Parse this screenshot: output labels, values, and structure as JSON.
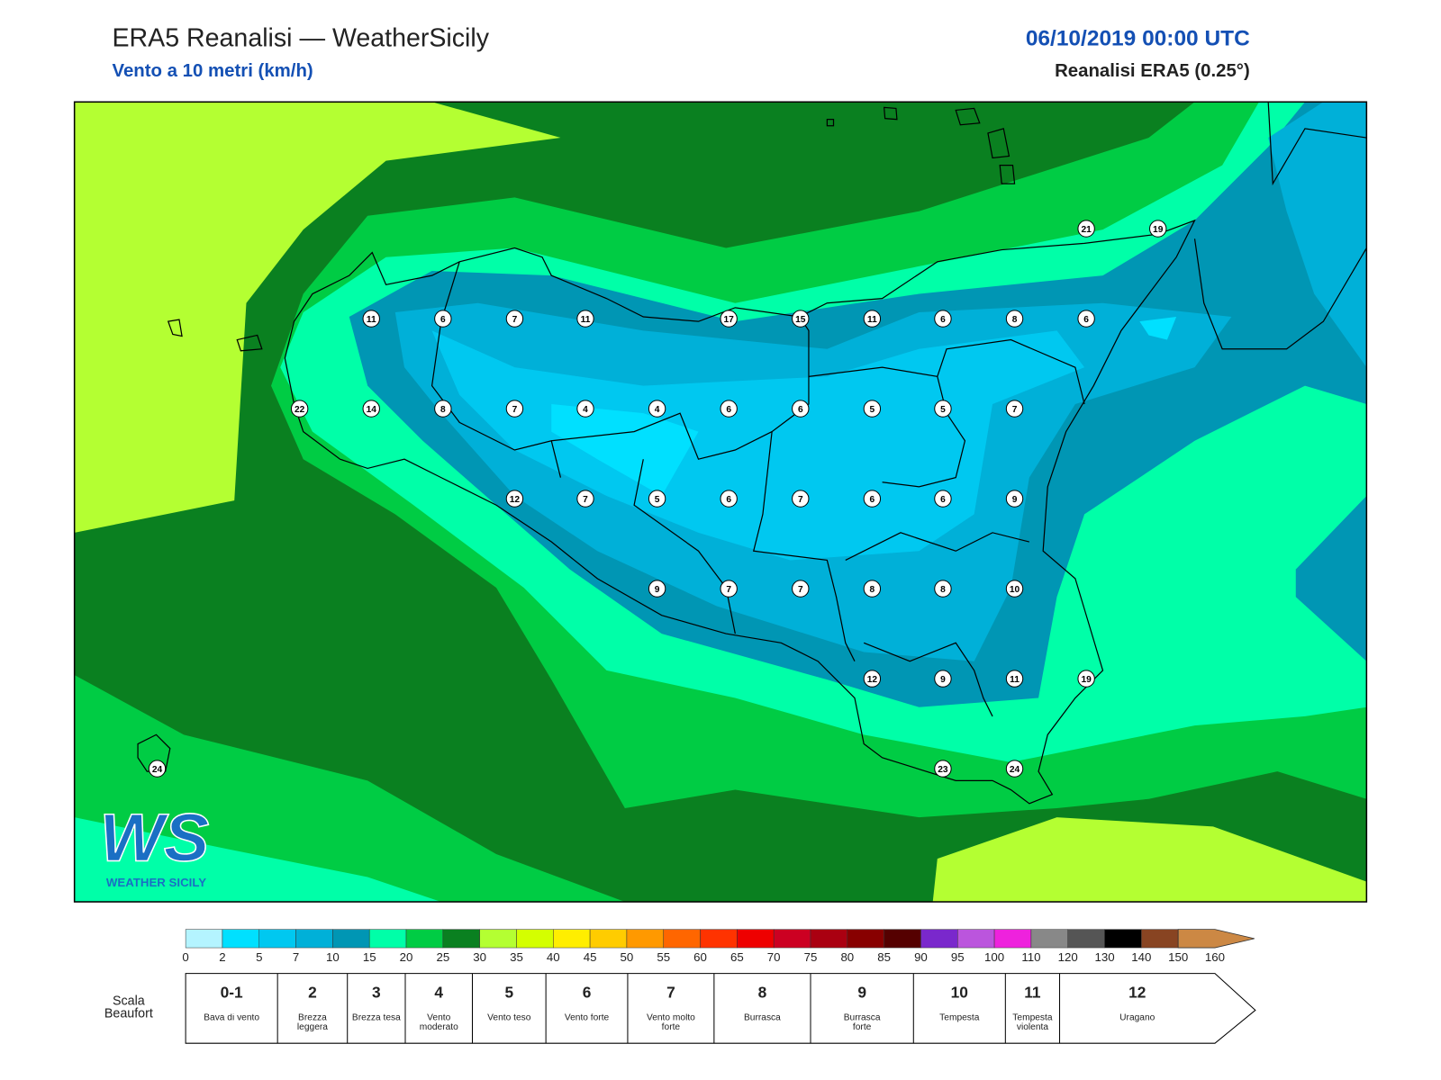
{
  "header": {
    "title": "ERA5 Reanalisi — WeatherSicily",
    "subtitle": "Vento a 10 metri (km/h)",
    "datetime": "06/10/2019 00:00 UTC",
    "source": "Reanalisi ERA5 (0.25°)"
  },
  "map": {
    "stations": [
      21,
      19,
      11,
      6,
      7,
      11,
      17,
      15,
      11,
      6,
      8,
      6,
      22,
      14,
      8,
      7,
      4,
      4,
      6,
      6,
      5,
      5,
      7,
      12,
      7,
      5,
      6,
      7,
      6,
      6,
      9,
      9,
      7,
      7,
      8,
      8,
      10,
      12,
      9,
      11,
      19,
      24,
      23,
      24
    ]
  },
  "logo": {
    "initials": "WS",
    "name": "WEATHER SICILY"
  },
  "colorbar": {
    "ticks": [
      0,
      2,
      5,
      7,
      10,
      15,
      20,
      25,
      30,
      35,
      40,
      45,
      50,
      55,
      60,
      65,
      70,
      75,
      80,
      85,
      90,
      95,
      100,
      110,
      120,
      130,
      140,
      150,
      160
    ],
    "colors": [
      "#b4f4ff",
      "#00e0ff",
      "#00c8f0",
      "#00b0d8",
      "#0096b4",
      "#00ffa8",
      "#00cc44",
      "#0a8020",
      "#b4ff32",
      "#d4ff00",
      "#ffee00",
      "#ffcc00",
      "#ff9900",
      "#ff6600",
      "#ff3300",
      "#ee0000",
      "#cc0022",
      "#aa0011",
      "#880000",
      "#550000",
      "#7a28cc",
      "#bb55dd",
      "#ee22dd",
      "#888888",
      "#555555",
      "#000000",
      "#884422",
      "#cc8844"
    ]
  },
  "beaufort": {
    "label": "Scala Beaufort",
    "levels": [
      {
        "force": "0-1",
        "description": "Bava di vento"
      },
      {
        "force": 2,
        "description": "Brezza leggera"
      },
      {
        "force": 3,
        "description": "Brezza tesa"
      },
      {
        "force": 4,
        "description": "Vento moderato"
      },
      {
        "force": 5,
        "description": "Vento teso"
      },
      {
        "force": 6,
        "description": "Vento forte"
      },
      {
        "force": 7,
        "description": "Vento molto forte"
      },
      {
        "force": 8,
        "description": "Burrasca"
      },
      {
        "force": 9,
        "description": "Burrasca forte"
      },
      {
        "force": 10,
        "description": "Tempesta"
      },
      {
        "force": 11,
        "description": "Tempesta violenta"
      },
      {
        "force": 12,
        "description": "Uragano"
      }
    ]
  }
}
